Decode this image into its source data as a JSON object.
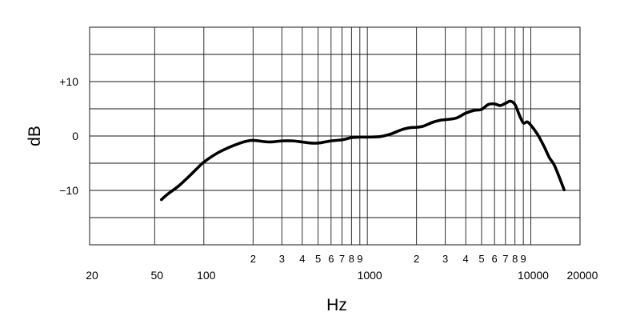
{
  "chart_data": {
    "type": "line",
    "title": "",
    "xlabel": "Hz",
    "ylabel": "dB",
    "x_scale": "log",
    "xlim": [
      20,
      20000
    ],
    "ylim": [
      -20,
      20
    ],
    "grid": true,
    "x_major_ticks": [
      {
        "value": 20,
        "label": "20"
      },
      {
        "value": 50,
        "label": "50"
      },
      {
        "value": 100,
        "label": "100"
      },
      {
        "value": 1000,
        "label": "1000"
      },
      {
        "value": 10000,
        "label": "10000"
      },
      {
        "value": 20000,
        "label": "20000"
      }
    ],
    "x_minor_ticks": [
      {
        "value": 200,
        "label": "2"
      },
      {
        "value": 300,
        "label": "3"
      },
      {
        "value": 400,
        "label": "4"
      },
      {
        "value": 500,
        "label": "5"
      },
      {
        "value": 600,
        "label": "6"
      },
      {
        "value": 700,
        "label": "7"
      },
      {
        "value": 800,
        "label": "8"
      },
      {
        "value": 900,
        "label": "9"
      },
      {
        "value": 2000,
        "label": "2"
      },
      {
        "value": 3000,
        "label": "3"
      },
      {
        "value": 4000,
        "label": "4"
      },
      {
        "value": 5000,
        "label": "5"
      },
      {
        "value": 6000,
        "label": "6"
      },
      {
        "value": 7000,
        "label": "7"
      },
      {
        "value": 8000,
        "label": "8"
      },
      {
        "value": 9000,
        "label": "9"
      }
    ],
    "y_ticks": [
      {
        "value": 10,
        "label": "+10"
      },
      {
        "value": 0,
        "label": "0"
      },
      {
        "value": -10,
        "label": "−10"
      }
    ],
    "y_grid_values": [
      -15,
      -10,
      -5,
      0,
      5,
      10,
      15
    ],
    "series": [
      {
        "color": "#000000",
        "x": [
          55,
          60,
          70,
          80,
          90,
          100,
          120,
          140,
          160,
          180,
          200,
          250,
          300,
          350,
          400,
          450,
          500,
          550,
          600,
          700,
          800,
          900,
          1000,
          1200,
          1400,
          1600,
          1800,
          2000,
          2200,
          2500,
          2800,
          3000,
          3500,
          4000,
          4500,
          5000,
          5500,
          6000,
          6500,
          7000,
          7500,
          8000,
          8500,
          9000,
          9500,
          10000,
          11000,
          12000,
          13000,
          14000,
          16000
        ],
        "y": [
          -11.7,
          -10.7,
          -9.2,
          -7.6,
          -6.1,
          -4.8,
          -3.2,
          -2.2,
          -1.5,
          -1.0,
          -0.8,
          -1.1,
          -0.9,
          -0.9,
          -1.1,
          -1.3,
          -1.3,
          -1.1,
          -0.9,
          -0.7,
          -0.3,
          -0.2,
          -0.2,
          -0.1,
          0.4,
          1.1,
          1.5,
          1.6,
          1.8,
          2.5,
          2.9,
          3.0,
          3.3,
          4.2,
          4.7,
          4.9,
          5.8,
          5.9,
          5.6,
          6.0,
          6.4,
          5.8,
          3.9,
          2.4,
          2.6,
          2.0,
          0.3,
          -1.8,
          -4.0,
          -5.5,
          -9.9
        ]
      }
    ]
  }
}
